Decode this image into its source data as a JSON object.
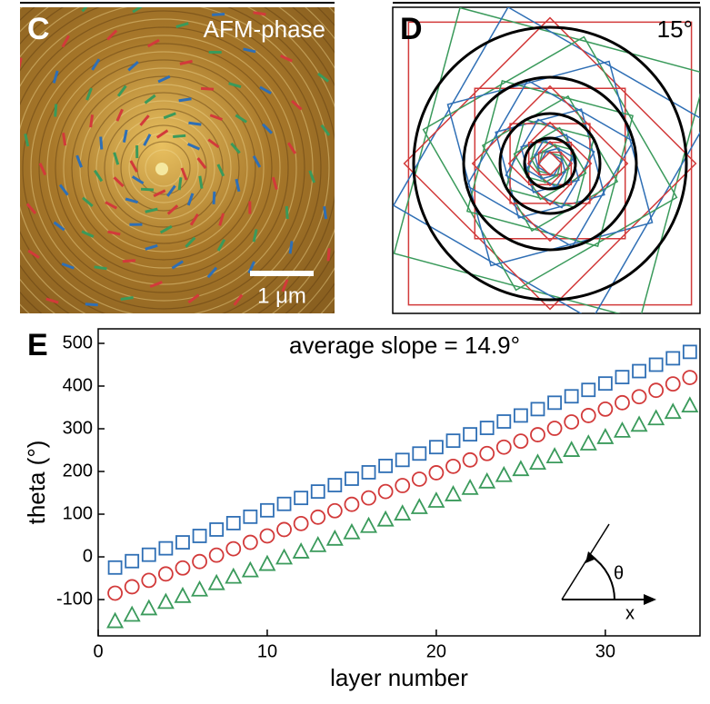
{
  "panels": {
    "c": {
      "label": "C",
      "title": "AFM-phase",
      "scale_bar": "1 μm"
    },
    "d": {
      "label": "D",
      "angle": "15°"
    },
    "e": {
      "label": "E"
    }
  },
  "chart_data": {
    "type": "scatter",
    "annotation": "average slope = 14.9°",
    "x_label": "layer number",
    "y_label": "theta (°)",
    "inset_labels": [
      "θ",
      "x"
    ],
    "x": [
      1,
      2,
      3,
      4,
      5,
      6,
      7,
      8,
      9,
      10,
      11,
      12,
      13,
      14,
      15,
      16,
      17,
      18,
      19,
      20,
      21,
      22,
      23,
      24,
      25,
      26,
      27,
      28,
      29,
      30,
      31,
      32,
      33,
      34,
      35
    ],
    "series": [
      {
        "color": "#2f6fb5",
        "marker": "square",
        "values": [
          -25,
          -10,
          5,
          20,
          34,
          49,
          64,
          79,
          94,
          109,
          124,
          138,
          153,
          168,
          183,
          198,
          213,
          227,
          242,
          257,
          272,
          287,
          302,
          317,
          331,
          346,
          361,
          376,
          391,
          406,
          421,
          435,
          450,
          465,
          480
        ]
      },
      {
        "color": "#d23a3a",
        "marker": "circle",
        "values": [
          -85,
          -70,
          -55,
          -40,
          -26,
          -11,
          4,
          19,
          34,
          49,
          64,
          78,
          93,
          108,
          123,
          138,
          153,
          167,
          182,
          197,
          212,
          227,
          242,
          257,
          271,
          286,
          301,
          316,
          331,
          346,
          361,
          375,
          390,
          405,
          420
        ]
      },
      {
        "color": "#3a9a5b",
        "marker": "triangle",
        "values": [
          -150,
          -135,
          -120,
          -105,
          -91,
          -76,
          -61,
          -46,
          -31,
          -16,
          -1,
          13,
          28,
          43,
          58,
          73,
          88,
          102,
          117,
          132,
          147,
          162,
          177,
          192,
          206,
          221,
          236,
          251,
          266,
          281,
          296,
          310,
          325,
          340,
          355
        ]
      }
    ],
    "xlim": [
      0,
      35.6
    ],
    "xticks": [
      0,
      10,
      20,
      30
    ],
    "ylim": [
      -185,
      534
    ],
    "yticks": [
      -100,
      0,
      100,
      200,
      300,
      400,
      500
    ]
  }
}
